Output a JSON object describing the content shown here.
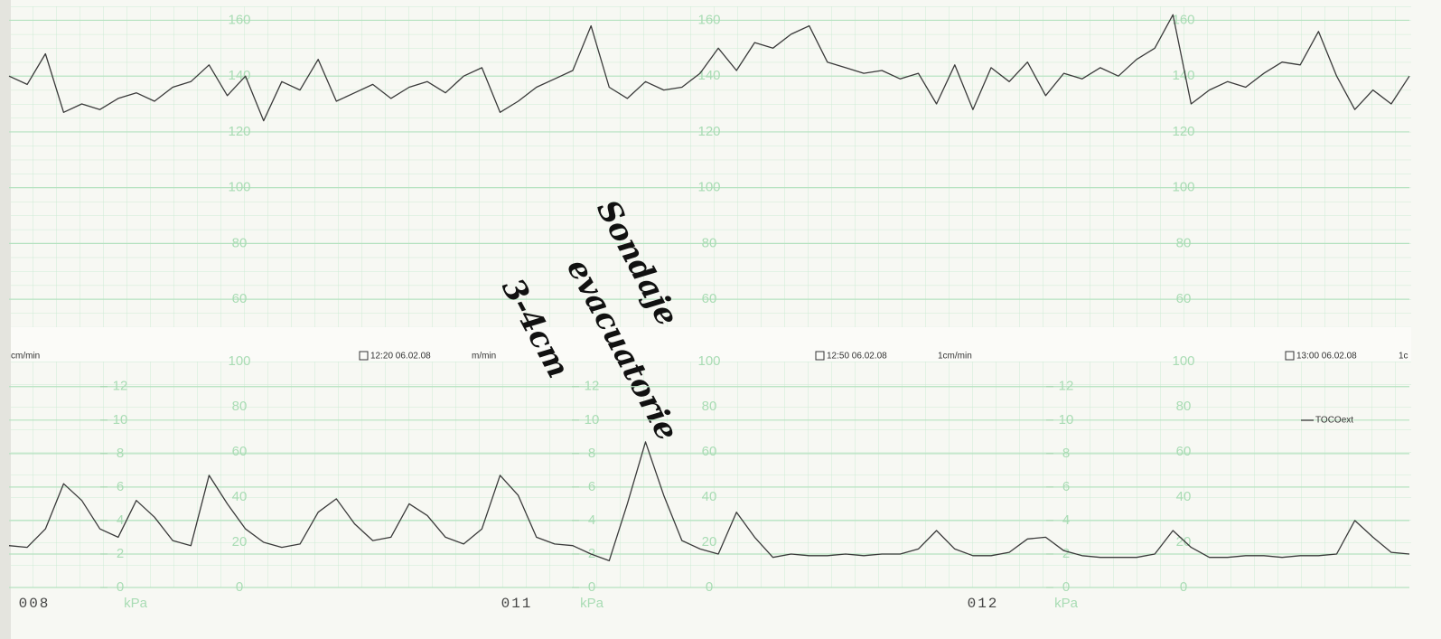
{
  "chart_data": [
    {
      "type": "line",
      "ylim": [
        50,
        165
      ],
      "yticks": [
        60,
        80,
        100,
        120,
        140,
        160
      ],
      "grid": true,
      "handwritten_note": [
        "Sondaje",
        "evacuatorie",
        "3-4cm"
      ],
      "series": [
        {
          "color": "#3a3a3a",
          "values": [
            140,
            137,
            148,
            127,
            130,
            128,
            132,
            134,
            131,
            136,
            138,
            144,
            133,
            140,
            124,
            138,
            135,
            146,
            131,
            134,
            137,
            132,
            136,
            138,
            134,
            140,
            143,
            127,
            131,
            136,
            139,
            142,
            158,
            136,
            132,
            138,
            135,
            136,
            141,
            150,
            142,
            152,
            150,
            155,
            158,
            145,
            143,
            141,
            142,
            139,
            141,
            130,
            144,
            128,
            143,
            138,
            145,
            133,
            141,
            139,
            143,
            140,
            146,
            150,
            162,
            130,
            135,
            138,
            136,
            141,
            145,
            144,
            156,
            140,
            128,
            135,
            130,
            140
          ]
        }
      ]
    },
    {
      "type": "line",
      "ylim": [
        0,
        13.5
      ],
      "yticks": [
        0,
        2,
        4,
        6,
        8,
        10,
        12
      ],
      "y2lim": [
        0,
        100
      ],
      "y2ticks": [
        0,
        20,
        40,
        60,
        80,
        100
      ],
      "grid": true,
      "y_label": "kPa",
      "legend": "upper right",
      "headers": [
        "cm/min",
        "12:20 06.02.08",
        "m/min",
        "12:50 06.02.08",
        "1cm/min",
        "13:00 06.02.08",
        "1c"
      ],
      "page_numbers": [
        "008",
        "011",
        "012"
      ],
      "series": [
        {
          "name": "TOCOext",
          "color": "#3a3a3a",
          "values": [
            2.5,
            2.4,
            3.5,
            6.2,
            5.2,
            3.5,
            3.0,
            5.2,
            4.2,
            2.8,
            2.5,
            6.7,
            5.0,
            3.5,
            2.7,
            2.4,
            2.6,
            4.5,
            5.3,
            3.8,
            2.8,
            3.0,
            5.0,
            4.3,
            3.0,
            2.6,
            3.5,
            6.7,
            5.5,
            3.0,
            2.6,
            2.5,
            2.0,
            1.6,
            5.0,
            8.7,
            5.5,
            2.8,
            2.3,
            2.0,
            4.5,
            3.0,
            1.8,
            2.0,
            1.9,
            1.9,
            2.0,
            1.9,
            2.0,
            2.0,
            2.3,
            3.4,
            2.3,
            1.9,
            1.9,
            2.1,
            2.9,
            3.0,
            2.2,
            1.9,
            1.8,
            1.8,
            1.8,
            2.0,
            3.4,
            2.4,
            1.8,
            1.8,
            1.9,
            1.9,
            1.8,
            1.9,
            1.9,
            2.0,
            4.0,
            3.0,
            2.1,
            2.0
          ]
        }
      ]
    }
  ]
}
